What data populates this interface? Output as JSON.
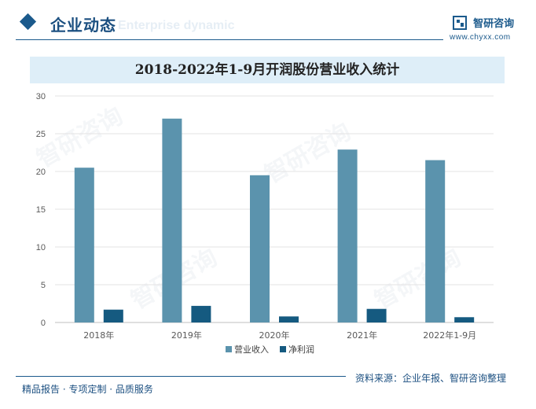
{
  "header": {
    "section_title": "企业动态",
    "section_subtitle": "Enterprise dynamic",
    "brand_name": "智研咨询",
    "brand_url": "www.chyxx.com"
  },
  "watermark_text": "智研咨询",
  "chart_data": {
    "type": "bar",
    "title": "2018-2022年1-9月开润股份营业收入统计",
    "categories": [
      "2018年",
      "2019年",
      "2020年",
      "2021年",
      "2022年1-9月"
    ],
    "series": [
      {
        "name": "营业收入",
        "values": [
          20.5,
          27.0,
          19.5,
          22.9,
          21.5
        ],
        "color": "#5b93ad"
      },
      {
        "name": "净利润",
        "values": [
          1.7,
          2.2,
          0.8,
          1.8,
          0.7
        ],
        "color": "#155a80"
      }
    ],
    "ylim": [
      0,
      30
    ],
    "yticks": [
      0,
      5,
      10,
      15,
      20,
      25,
      30
    ],
    "grid": true,
    "legend_position": "bottom"
  },
  "footer": {
    "left_text": "精品报告 · 专项定制 · 品质服务",
    "source_text": "资料来源：企业年报、智研咨询整理"
  }
}
